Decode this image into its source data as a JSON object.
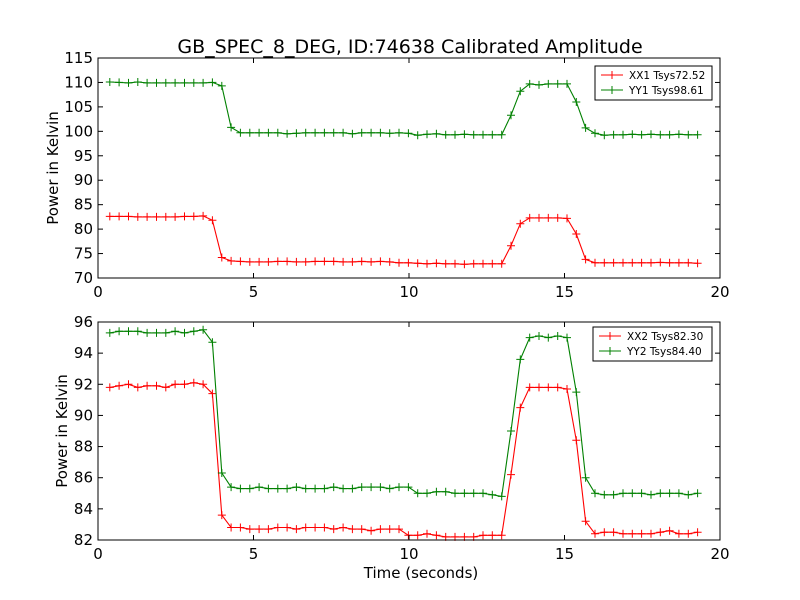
{
  "figure_title": "GB_SPEC_8_DEG, ID:74638 Calibrated Amplitude",
  "chart_data": [
    {
      "type": "line",
      "title": "GB_SPEC_8_DEG, ID:74638 Calibrated Amplitude",
      "xlabel": "",
      "ylabel": "Power in Kelvin",
      "xlim": [
        0,
        20
      ],
      "ylim": [
        70,
        115
      ],
      "xticks": [
        0,
        5,
        10,
        15,
        20
      ],
      "yticks": [
        70,
        75,
        80,
        85,
        90,
        95,
        100,
        105,
        110,
        115
      ],
      "grid": false,
      "legend_position": "top-right",
      "x": [
        0.38,
        0.68,
        0.98,
        1.28,
        1.58,
        1.88,
        2.18,
        2.48,
        2.78,
        3.08,
        3.38,
        3.68,
        3.98,
        4.28,
        4.58,
        4.88,
        5.18,
        5.48,
        5.78,
        6.08,
        6.38,
        6.68,
        6.98,
        7.28,
        7.58,
        7.88,
        8.18,
        8.48,
        8.78,
        9.08,
        9.38,
        9.68,
        9.98,
        10.28,
        10.58,
        10.88,
        11.18,
        11.48,
        11.78,
        12.08,
        12.38,
        12.68,
        12.98,
        13.28,
        13.58,
        13.88,
        14.18,
        14.48,
        14.78,
        15.08,
        15.38,
        15.68,
        15.98,
        16.28,
        16.58,
        16.88,
        17.18,
        17.48,
        17.78,
        18.08,
        18.38,
        18.68,
        18.98,
        19.28
      ],
      "series": [
        {
          "name": "XX1 Tsys72.52",
          "color": "#ff0000",
          "values": [
            82.6,
            82.6,
            82.6,
            82.5,
            82.5,
            82.5,
            82.5,
            82.5,
            82.6,
            82.6,
            82.7,
            81.8,
            74.2,
            73.5,
            73.4,
            73.3,
            73.3,
            73.3,
            73.4,
            73.4,
            73.3,
            73.3,
            73.4,
            73.4,
            73.4,
            73.3,
            73.3,
            73.4,
            73.3,
            73.4,
            73.3,
            73.1,
            73.1,
            73.0,
            72.9,
            73.0,
            72.9,
            72.9,
            72.8,
            72.9,
            72.9,
            72.9,
            72.9,
            76.6,
            81.1,
            82.3,
            82.3,
            82.3,
            82.3,
            82.2,
            79.0,
            73.8,
            73.1,
            73.1,
            73.1,
            73.1,
            73.1,
            73.1,
            73.1,
            73.2,
            73.1,
            73.1,
            73.1,
            73.0
          ]
        },
        {
          "name": "YY1 Tsys98.61",
          "color": "#008000",
          "values": [
            110.1,
            110.0,
            109.9,
            110.1,
            109.9,
            109.9,
            109.9,
            109.9,
            109.9,
            109.9,
            109.9,
            110.0,
            109.3,
            100.8,
            99.7,
            99.7,
            99.7,
            99.7,
            99.7,
            99.5,
            99.6,
            99.7,
            99.7,
            99.7,
            99.7,
            99.7,
            99.5,
            99.7,
            99.7,
            99.7,
            99.6,
            99.7,
            99.6,
            99.2,
            99.4,
            99.5,
            99.3,
            99.3,
            99.4,
            99.3,
            99.3,
            99.3,
            99.3,
            103.3,
            108.2,
            109.7,
            109.5,
            109.7,
            109.7,
            109.7,
            106.0,
            100.7,
            99.6,
            99.2,
            99.3,
            99.3,
            99.4,
            99.3,
            99.4,
            99.3,
            99.3,
            99.4,
            99.3,
            99.3
          ]
        }
      ]
    },
    {
      "type": "line",
      "title": "",
      "xlabel": "Time (seconds)",
      "ylabel": "Power in Kelvin",
      "xlim": [
        0,
        20
      ],
      "ylim": [
        82,
        96
      ],
      "xticks": [
        0,
        5,
        10,
        15,
        20
      ],
      "yticks": [
        82,
        84,
        86,
        88,
        90,
        92,
        94,
        96
      ],
      "grid": false,
      "legend_position": "top-right",
      "x": [
        0.38,
        0.68,
        0.98,
        1.28,
        1.58,
        1.88,
        2.18,
        2.48,
        2.78,
        3.08,
        3.38,
        3.68,
        3.98,
        4.28,
        4.58,
        4.88,
        5.18,
        5.48,
        5.78,
        6.08,
        6.38,
        6.68,
        6.98,
        7.28,
        7.58,
        7.88,
        8.18,
        8.48,
        8.78,
        9.08,
        9.38,
        9.68,
        9.98,
        10.28,
        10.58,
        10.88,
        11.18,
        11.48,
        11.78,
        12.08,
        12.38,
        12.68,
        12.98,
        13.28,
        13.58,
        13.88,
        14.18,
        14.48,
        14.78,
        15.08,
        15.38,
        15.68,
        15.98,
        16.28,
        16.58,
        16.88,
        17.18,
        17.48,
        17.78,
        18.08,
        18.38,
        18.68,
        18.98,
        19.28
      ],
      "series": [
        {
          "name": "XX2 Tsys82.30",
          "color": "#ff0000",
          "values": [
            91.8,
            91.9,
            92.0,
            91.8,
            91.9,
            91.9,
            91.8,
            92.0,
            92.0,
            92.1,
            92.0,
            91.4,
            83.6,
            82.8,
            82.8,
            82.7,
            82.7,
            82.7,
            82.8,
            82.8,
            82.7,
            82.8,
            82.8,
            82.8,
            82.7,
            82.8,
            82.7,
            82.7,
            82.6,
            82.7,
            82.7,
            82.7,
            82.3,
            82.3,
            82.4,
            82.3,
            82.2,
            82.2,
            82.2,
            82.2,
            82.3,
            82.3,
            82.3,
            86.2,
            90.5,
            91.8,
            91.8,
            91.8,
            91.8,
            91.7,
            88.4,
            83.2,
            82.4,
            82.5,
            82.5,
            82.4,
            82.4,
            82.4,
            82.4,
            82.5,
            82.6,
            82.4,
            82.4,
            82.5
          ]
        },
        {
          "name": "YY2 Tsys84.40",
          "color": "#008000",
          "values": [
            95.3,
            95.4,
            95.4,
            95.4,
            95.3,
            95.3,
            95.3,
            95.4,
            95.3,
            95.4,
            95.5,
            94.7,
            86.3,
            85.4,
            85.3,
            85.3,
            85.4,
            85.3,
            85.3,
            85.3,
            85.4,
            85.3,
            85.3,
            85.3,
            85.4,
            85.3,
            85.3,
            85.4,
            85.4,
            85.4,
            85.3,
            85.4,
            85.4,
            85.0,
            85.0,
            85.1,
            85.1,
            85.0,
            85.0,
            85.0,
            85.0,
            84.9,
            84.8,
            89.0,
            93.6,
            95.0,
            95.1,
            95.0,
            95.1,
            95.0,
            91.5,
            86.0,
            85.0,
            84.9,
            84.9,
            85.0,
            85.0,
            85.0,
            84.9,
            85.0,
            85.0,
            85.0,
            84.9,
            85.0
          ]
        }
      ]
    }
  ]
}
